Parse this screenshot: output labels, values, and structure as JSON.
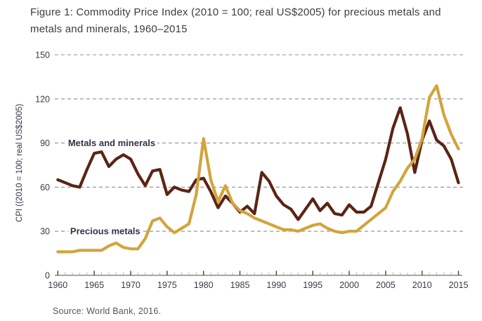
{
  "figure": {
    "title": "Figure 1: Commodity Price Index (2010 = 100; real US$2005) for precious metals and metals and minerals, 1960–2015",
    "source": "Source: World Bank, 2016."
  },
  "chart_data": {
    "type": "line",
    "y_label": "CPI ((2010 = 100; real US$2005)",
    "x_label": "",
    "xlim": [
      1960,
      2015
    ],
    "ylim": [
      0,
      150
    ],
    "y_ticks": [
      0,
      30,
      60,
      90,
      120,
      150
    ],
    "x_ticks_labeled": [
      1960,
      1965,
      1970,
      1975,
      1980,
      1985,
      1990,
      1995,
      2000,
      2005,
      2010,
      2015
    ],
    "x_minor_tick_step": 1,
    "grid": "horizontal-dashed",
    "legend_position": "inline-labels",
    "years": [
      1960,
      1961,
      1962,
      1963,
      1964,
      1965,
      1966,
      1967,
      1968,
      1969,
      1970,
      1971,
      1972,
      1973,
      1974,
      1975,
      1976,
      1977,
      1978,
      1979,
      1980,
      1981,
      1982,
      1983,
      1984,
      1985,
      1986,
      1987,
      1988,
      1989,
      1990,
      1991,
      1992,
      1993,
      1994,
      1995,
      1996,
      1997,
      1998,
      1999,
      2000,
      2001,
      2002,
      2003,
      2004,
      2005,
      2006,
      2007,
      2008,
      2009,
      2010,
      2011,
      2012,
      2013,
      2014,
      2015
    ],
    "series": [
      {
        "name": "Metals and minerals",
        "color": "#5b2415",
        "label_anchor": {
          "year": 1961.4,
          "value": 90
        },
        "values": [
          65,
          63,
          61,
          60,
          72,
          83,
          84,
          74,
          79,
          82,
          79,
          69,
          61,
          71,
          72,
          55,
          60,
          58,
          57,
          65,
          66,
          57,
          46,
          54,
          49,
          43,
          47,
          42,
          70,
          64,
          54,
          48,
          45,
          38,
          45,
          52,
          44,
          49,
          42,
          41,
          48,
          43,
          43,
          47,
          63,
          79,
          100,
          114,
          96,
          70,
          92,
          105,
          92,
          88,
          79,
          63
        ]
      },
      {
        "name": "Precious metals",
        "color": "#d2a43c",
        "label_anchor": {
          "year": 1961.7,
          "value": 30
        },
        "values": [
          16,
          16,
          16,
          17,
          17,
          17,
          17,
          20,
          22,
          19,
          18,
          18,
          25,
          37,
          39,
          33,
          29,
          32,
          35,
          55,
          93,
          65,
          50,
          61,
          49,
          44,
          42,
          39,
          37,
          35,
          33,
          31,
          31,
          30,
          32,
          34,
          35,
          32,
          30,
          29,
          30,
          30,
          34,
          38,
          42,
          46,
          57,
          64,
          73,
          79,
          93,
          121,
          129,
          109,
          96,
          86
        ]
      }
    ],
    "style": {
      "grid_color": "#8f8f8f",
      "axis_color": "#8a8a8a",
      "major_tick_color": "#4c4c4c",
      "minor_tick_color": "#aeaeae",
      "tick_label_color": "#3a3a4a",
      "series_label_color": "#33334a",
      "line_width": 4.2
    }
  }
}
